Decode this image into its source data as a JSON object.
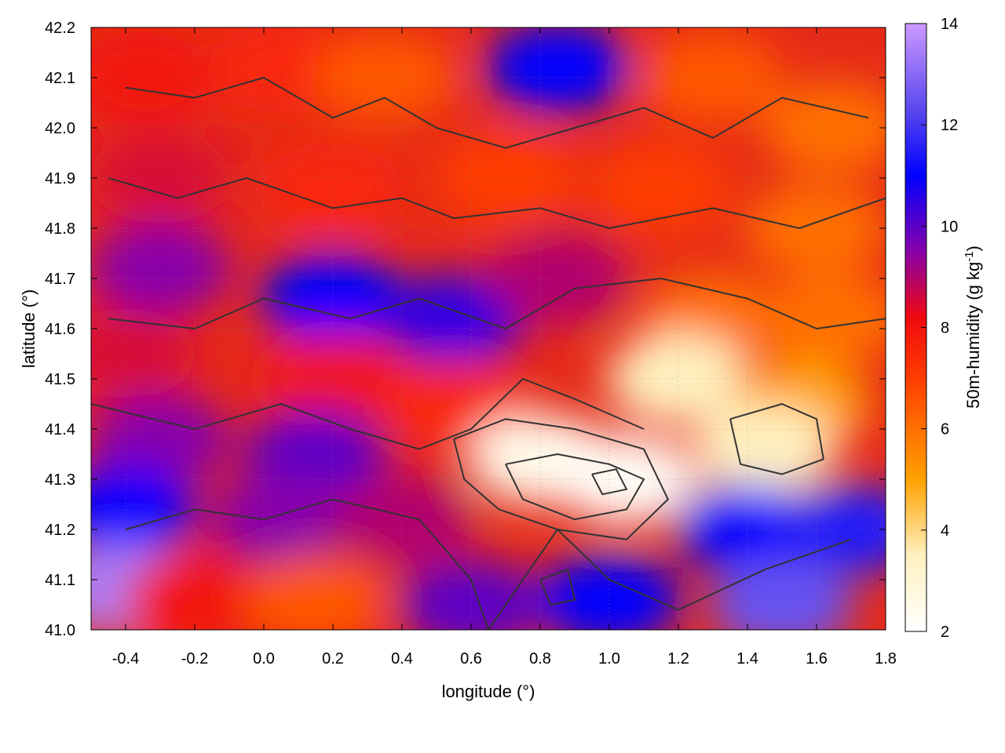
{
  "chart_data": {
    "type": "heatmap",
    "title": "",
    "xlabel": "longitude (°)",
    "ylabel": "latitude (°)",
    "colorbar_label": "50m-humidity (g kg",
    "colorbar_label_sup": "-1",
    "colorbar_label_end": ")",
    "xlim": [
      -0.5,
      1.8
    ],
    "ylim": [
      41.0,
      42.2
    ],
    "clim": [
      2,
      14
    ],
    "x_ticks": [
      "-0.4",
      "-0.2",
      "0.0",
      "0.2",
      "0.4",
      "0.6",
      "0.8",
      "1.0",
      "1.2",
      "1.4",
      "1.6",
      "1.8"
    ],
    "x_tick_values": [
      -0.4,
      -0.2,
      0.0,
      0.2,
      0.4,
      0.6,
      0.8,
      1.0,
      1.2,
      1.4,
      1.6,
      1.8
    ],
    "y_ticks": [
      "41.0",
      "41.1",
      "41.2",
      "41.3",
      "41.4",
      "41.5",
      "41.6",
      "41.7",
      "41.8",
      "41.9",
      "42.0",
      "42.1",
      "42.2"
    ],
    "y_tick_values": [
      41.0,
      41.1,
      41.2,
      41.3,
      41.4,
      41.5,
      41.6,
      41.7,
      41.8,
      41.9,
      42.0,
      42.1,
      42.2
    ],
    "colorbar_ticks": [
      "2",
      "4",
      "6",
      "8",
      "10",
      "12",
      "14"
    ],
    "colorbar_tick_values": [
      2,
      4,
      6,
      8,
      10,
      12,
      14
    ],
    "grid": true,
    "colormap_stops": [
      {
        "value": 2,
        "color": "#ffffff"
      },
      {
        "value": 3.5,
        "color": "#fff1c0"
      },
      {
        "value": 5,
        "color": "#ffa200"
      },
      {
        "value": 7,
        "color": "#ff3c00"
      },
      {
        "value": 8.2,
        "color": "#f00a10"
      },
      {
        "value": 9.5,
        "color": "#8800aa"
      },
      {
        "value": 11,
        "color": "#0000ff"
      },
      {
        "value": 12.3,
        "color": "#5a48ee"
      },
      {
        "value": 14,
        "color": "#cc99ff"
      }
    ],
    "humidity_regions": [
      {
        "lon": -0.35,
        "lat": 42.1,
        "humidity": 8.0
      },
      {
        "lon": 0.05,
        "lat": 42.12,
        "humidity": 7.5
      },
      {
        "lon": 0.35,
        "lat": 42.1,
        "humidity": 6.5
      },
      {
        "lon": 0.85,
        "lat": 42.12,
        "humidity": 11.0
      },
      {
        "lon": 1.3,
        "lat": 42.1,
        "humidity": 6.5
      },
      {
        "lon": 1.65,
        "lat": 42.0,
        "humidity": 6.0
      },
      {
        "lon": -0.3,
        "lat": 41.9,
        "humidity": 8.5
      },
      {
        "lon": 0.2,
        "lat": 41.88,
        "humidity": 7.5
      },
      {
        "lon": 0.7,
        "lat": 41.9,
        "humidity": 7.0
      },
      {
        "lon": 1.15,
        "lat": 41.88,
        "humidity": 7.0
      },
      {
        "lon": 1.6,
        "lat": 41.8,
        "humidity": 6.0
      },
      {
        "lon": -0.3,
        "lat": 41.72,
        "humidity": 9.5
      },
      {
        "lon": 0.2,
        "lat": 41.66,
        "humidity": 11.0
      },
      {
        "lon": 0.55,
        "lat": 41.62,
        "humidity": 10.5
      },
      {
        "lon": 0.85,
        "lat": 41.7,
        "humidity": 9.0
      },
      {
        "lon": 1.3,
        "lat": 41.62,
        "humidity": 6.0
      },
      {
        "lon": 1.65,
        "lat": 41.62,
        "humidity": 6.0
      },
      {
        "lon": -0.4,
        "lat": 41.55,
        "humidity": 8.5
      },
      {
        "lon": 0.2,
        "lat": 41.5,
        "humidity": 8.0
      },
      {
        "lon": 0.55,
        "lat": 41.45,
        "humidity": 7.5
      },
      {
        "lon": 1.2,
        "lat": 41.5,
        "humidity": 3.5
      },
      {
        "lon": 1.55,
        "lat": 41.45,
        "humidity": 5.0
      },
      {
        "lon": -0.3,
        "lat": 41.38,
        "humidity": 9.5
      },
      {
        "lon": 0.15,
        "lat": 41.35,
        "humidity": 10.0
      },
      {
        "lon": 0.8,
        "lat": 41.34,
        "humidity": 2.5
      },
      {
        "lon": 1.05,
        "lat": 41.3,
        "humidity": 2.2
      },
      {
        "lon": 1.45,
        "lat": 41.36,
        "humidity": 3.5
      },
      {
        "lon": -0.4,
        "lat": 41.24,
        "humidity": 11.0
      },
      {
        "lon": 0.05,
        "lat": 41.22,
        "humidity": 9.5
      },
      {
        "lon": 0.4,
        "lat": 41.22,
        "humidity": 9.0
      },
      {
        "lon": 1.4,
        "lat": 41.2,
        "humidity": 11.0
      },
      {
        "lon": 1.7,
        "lat": 41.2,
        "humidity": 11.5
      },
      {
        "lon": -0.4,
        "lat": 41.08,
        "humidity": 13.5
      },
      {
        "lon": -0.2,
        "lat": 41.06,
        "humidity": 8.0
      },
      {
        "lon": 0.15,
        "lat": 41.06,
        "humidity": 6.5
      },
      {
        "lon": 0.6,
        "lat": 41.05,
        "humidity": 10.0
      },
      {
        "lon": 1.0,
        "lat": 41.06,
        "humidity": 11.0
      },
      {
        "lon": 1.5,
        "lat": 41.05,
        "humidity": 12.5
      }
    ],
    "contours": [
      [
        [
          -0.4,
          41.2
        ],
        [
          -0.2,
          41.24
        ],
        [
          0.0,
          41.22
        ],
        [
          0.2,
          41.26
        ],
        [
          0.45,
          41.22
        ],
        [
          0.6,
          41.1
        ],
        [
          0.65,
          41.0
        ]
      ],
      [
        [
          -0.5,
          41.45
        ],
        [
          -0.2,
          41.4
        ],
        [
          0.05,
          41.45
        ],
        [
          0.25,
          41.4
        ],
        [
          0.45,
          41.36
        ],
        [
          0.6,
          41.4
        ],
        [
          0.75,
          41.5
        ],
        [
          0.9,
          41.46
        ],
        [
          1.1,
          41.4
        ]
      ],
      [
        [
          -0.45,
          41.62
        ],
        [
          -0.2,
          41.6
        ],
        [
          0.0,
          41.66
        ],
        [
          0.25,
          41.62
        ],
        [
          0.45,
          41.66
        ],
        [
          0.7,
          41.6
        ],
        [
          0.9,
          41.68
        ],
        [
          1.15,
          41.7
        ],
        [
          1.4,
          41.66
        ],
        [
          1.6,
          41.6
        ],
        [
          1.8,
          41.62
        ]
      ],
      [
        [
          -0.45,
          41.9
        ],
        [
          -0.25,
          41.86
        ],
        [
          -0.05,
          41.9
        ],
        [
          0.2,
          41.84
        ],
        [
          0.4,
          41.86
        ],
        [
          0.55,
          41.82
        ],
        [
          0.8,
          41.84
        ],
        [
          1.0,
          41.8
        ],
        [
          1.3,
          41.84
        ],
        [
          1.55,
          41.8
        ],
        [
          1.8,
          41.86
        ]
      ],
      [
        [
          -0.4,
          42.08
        ],
        [
          -0.2,
          42.06
        ],
        [
          0.0,
          42.1
        ],
        [
          0.2,
          42.02
        ],
        [
          0.35,
          42.06
        ],
        [
          0.5,
          42.0
        ],
        [
          0.7,
          41.96
        ],
        [
          0.9,
          42.0
        ],
        [
          1.1,
          42.04
        ],
        [
          1.3,
          41.98
        ],
        [
          1.5,
          42.06
        ],
        [
          1.75,
          42.02
        ]
      ],
      [
        [
          0.55,
          41.38
        ],
        [
          0.7,
          41.42
        ],
        [
          0.9,
          41.4
        ],
        [
          1.1,
          41.36
        ],
        [
          1.17,
          41.26
        ],
        [
          1.05,
          41.18
        ],
        [
          0.85,
          41.2
        ],
        [
          0.68,
          41.24
        ],
        [
          0.58,
          41.3
        ],
        [
          0.55,
          41.38
        ]
      ],
      [
        [
          0.7,
          41.33
        ],
        [
          0.85,
          41.35
        ],
        [
          1.0,
          41.33
        ],
        [
          1.1,
          41.3
        ],
        [
          1.05,
          41.24
        ],
        [
          0.9,
          41.22
        ],
        [
          0.75,
          41.26
        ],
        [
          0.7,
          41.33
        ]
      ],
      [
        [
          0.95,
          41.31
        ],
        [
          1.02,
          41.32
        ],
        [
          1.05,
          41.28
        ],
        [
          0.98,
          41.27
        ],
        [
          0.95,
          41.31
        ]
      ],
      [
        [
          1.35,
          41.42
        ],
        [
          1.5,
          41.45
        ],
        [
          1.6,
          41.42
        ],
        [
          1.62,
          41.34
        ],
        [
          1.5,
          41.31
        ],
        [
          1.38,
          41.33
        ],
        [
          1.35,
          41.42
        ]
      ],
      [
        [
          0.8,
          41.1
        ],
        [
          0.88,
          41.12
        ],
        [
          0.9,
          41.06
        ],
        [
          0.83,
          41.05
        ],
        [
          0.8,
          41.1
        ]
      ],
      [
        [
          0.65,
          41.0
        ],
        [
          0.75,
          41.1
        ],
        [
          0.85,
          41.2
        ],
        [
          1.0,
          41.1
        ],
        [
          1.2,
          41.04
        ],
        [
          1.45,
          41.12
        ],
        [
          1.7,
          41.18
        ]
      ]
    ]
  }
}
